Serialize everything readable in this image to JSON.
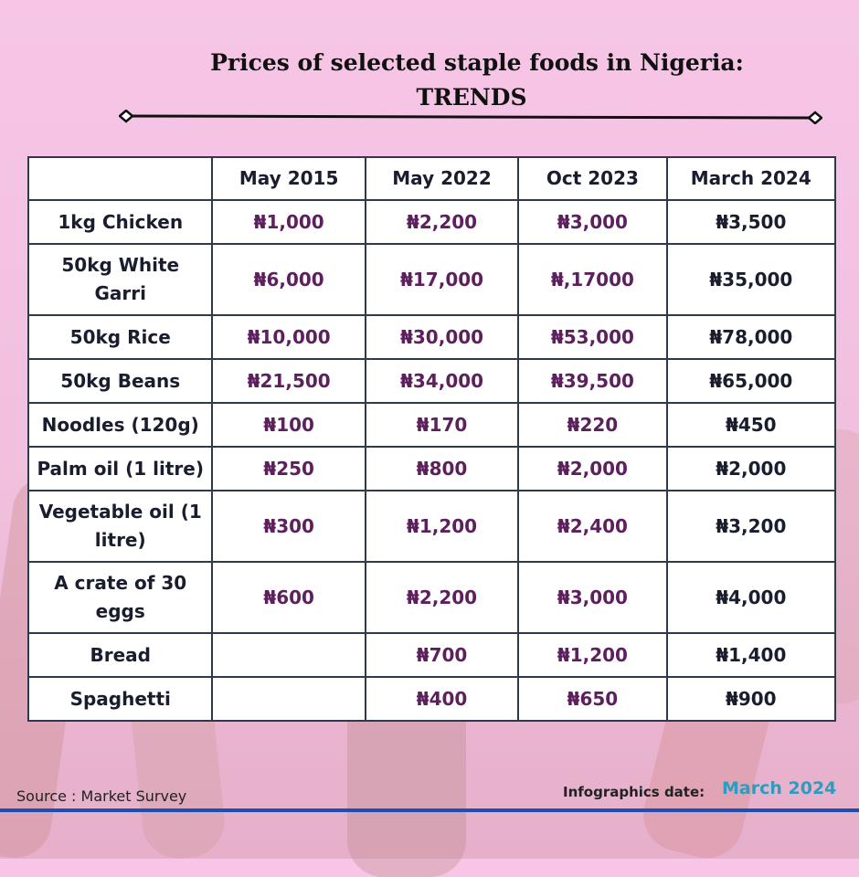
{
  "title": {
    "line1": "Prices of selected staple foods in Nigeria:",
    "line2": "TRENDS"
  },
  "table": {
    "headers": [
      "",
      "May 2015",
      "May 2022",
      "Oct 2023",
      "March 2024"
    ],
    "rows": [
      {
        "item": "1kg Chicken",
        "values": [
          "₦1,000",
          "₦2,200",
          "₦3,000",
          "₦3,500"
        ]
      },
      {
        "item": "50kg White Garri",
        "values": [
          "₦6,000",
          "₦17,000",
          "₦,17000",
          "₦35,000"
        ]
      },
      {
        "item": "50kg Rice",
        "values": [
          "₦10,000",
          "₦30,000",
          "₦53,000",
          "₦78,000"
        ]
      },
      {
        "item": "50kg Beans",
        "values": [
          "₦21,500",
          "₦34,000",
          "₦39,500",
          "₦65,000"
        ]
      },
      {
        "item": "Noodles (120g)",
        "values": [
          "₦100",
          "₦170",
          "₦220",
          "₦450"
        ]
      },
      {
        "item": "Palm oil (1 litre)",
        "values": [
          "₦250",
          "₦800",
          "₦2,000",
          "₦2,000"
        ]
      },
      {
        "item": "Vegetable oil (1 litre)",
        "values": [
          "₦300",
          "₦1,200",
          "₦2,400",
          "₦3,200"
        ]
      },
      {
        "item": "A crate of 30 eggs",
        "values": [
          "₦600",
          "₦2,200",
          "₦3,000",
          "₦4,000"
        ]
      },
      {
        "item": "Bread",
        "values": [
          "",
          "₦700",
          "₦1,200",
          "₦1,400"
        ]
      },
      {
        "item": "Spaghetti",
        "values": [
          "",
          "₦400",
          "₦650",
          "₦900"
        ]
      }
    ]
  },
  "footer": {
    "source": "Source : Market Survey",
    "info_label": "Infographics date:",
    "info_date": "March 2024"
  },
  "colors": {
    "value_purple": "#5e1f5e",
    "text_dark": "#1a1d2e",
    "date_blue": "#2a9dc0",
    "bottom_line": "#1d4fb0"
  }
}
